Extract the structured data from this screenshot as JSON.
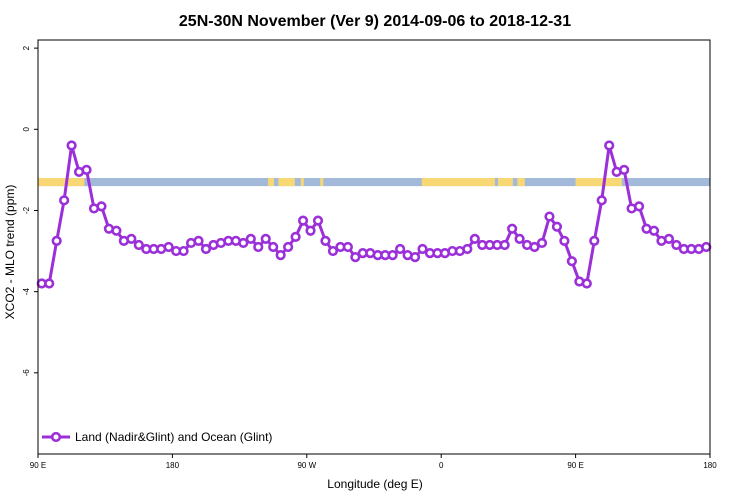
{
  "chart_data": {
    "type": "line",
    "title": "25N-30N November (Ver 9)   2014-09-06 to 2018-12-31",
    "xlabel": "Longitude (deg E)",
    "ylabel": "XCO2 - MLO trend (ppm)",
    "xlim": [
      90,
      540
    ],
    "ylim": [
      -8,
      2.2
    ],
    "x_ticks": [
      {
        "value": 90,
        "label": "90 E"
      },
      {
        "value": 180,
        "label": "180"
      },
      {
        "value": 270,
        "label": "90 W"
      },
      {
        "value": 360,
        "label": "0"
      },
      {
        "value": 450,
        "label": "90 E"
      },
      {
        "value": 540,
        "label": "180"
      }
    ],
    "y_ticks": [
      {
        "value": 2,
        "label": "2"
      },
      {
        "value": 0,
        "label": "0"
      },
      {
        "value": -2,
        "label": "-2"
      },
      {
        "value": -4,
        "label": "-4"
      },
      {
        "value": -6,
        "label": "-6"
      }
    ],
    "grid": false,
    "legend": {
      "position": "bottom-left",
      "entries": [
        "Land (Nadir&Glint) and Ocean (Glint)"
      ]
    },
    "surface_band": {
      "y_range": [
        -1.4,
        -1.2
      ],
      "ocean_color": "#a3b9d9",
      "land_color": "#f8d775",
      "land_segments": [
        [
          90,
          121
        ],
        [
          244,
          248
        ],
        [
          251,
          262
        ],
        [
          266,
          268
        ],
        [
          279,
          281
        ],
        [
          347,
          396
        ],
        [
          398,
          408
        ],
        [
          411,
          416
        ],
        [
          450,
          481
        ]
      ]
    },
    "series": [
      {
        "name": "Land (Nadir&Glint) and Ocean (Glint)",
        "color": "#9b30d9",
        "x": [
          92.5,
          97.5,
          102.5,
          107.5,
          112.5,
          117.5,
          122.5,
          127.5,
          132.5,
          137.5,
          142.5,
          147.5,
          152.5,
          157.5,
          162.5,
          167.5,
          172.5,
          177.5,
          182.5,
          187.5,
          192.5,
          197.5,
          202.5,
          207.5,
          212.5,
          217.5,
          222.5,
          227.5,
          232.5,
          237.5,
          242.5,
          247.5,
          252.5,
          257.5,
          262.5,
          267.5,
          272.5,
          277.5,
          282.5,
          287.5,
          292.5,
          297.5,
          302.5,
          307.5,
          312.5,
          317.5,
          322.5,
          327.5,
          332.5,
          337.5,
          342.5,
          347.5,
          352.5,
          357.5,
          362.5,
          367.5,
          372.5,
          377.5,
          382.5,
          387.5,
          392.5,
          397.5,
          402.5,
          407.5,
          412.5,
          417.5,
          422.5,
          427.5,
          432.5,
          437.5,
          442.5,
          447.5,
          452.5,
          457.5,
          462.5,
          467.5,
          472.5,
          477.5,
          482.5,
          487.5,
          492.5,
          497.5,
          502.5,
          507.5,
          512.5,
          517.5,
          522.5,
          527.5,
          532.5,
          537.5
        ],
        "values": [
          -3.8,
          -3.8,
          -2.75,
          -1.75,
          -0.4,
          -1.05,
          -1.0,
          -1.95,
          -1.9,
          -2.45,
          -2.5,
          -2.75,
          -2.7,
          -2.85,
          -2.95,
          -2.95,
          -2.95,
          -2.9,
          -3.0,
          -3.0,
          -2.8,
          -2.75,
          -2.95,
          -2.85,
          -2.8,
          -2.75,
          -2.75,
          -2.8,
          -2.7,
          -2.9,
          -2.7,
          -2.9,
          -3.1,
          -2.9,
          -2.65,
          -2.25,
          -2.5,
          -2.25,
          -2.75,
          -3.0,
          -2.9,
          -2.9,
          -3.15,
          -3.05,
          -3.05,
          -3.1,
          -3.1,
          -3.1,
          -2.95,
          -3.1,
          -3.15,
          -2.95,
          -3.05,
          -3.05,
          -3.05,
          -3.0,
          -3.0,
          -2.95,
          -2.7,
          -2.85,
          -2.85,
          -2.85,
          -2.85,
          -2.45,
          -2.7,
          -2.85,
          -2.9,
          -2.8,
          -2.15,
          -2.4,
          -2.75,
          -3.25,
          -3.75,
          -3.8,
          -2.75,
          -1.75,
          -0.4,
          -1.05,
          -1.0,
          -1.95,
          -1.9,
          -2.45,
          -2.5,
          -2.75,
          -2.7,
          -2.85,
          -2.95,
          -2.95,
          -2.95,
          -2.9
        ]
      }
    ]
  }
}
